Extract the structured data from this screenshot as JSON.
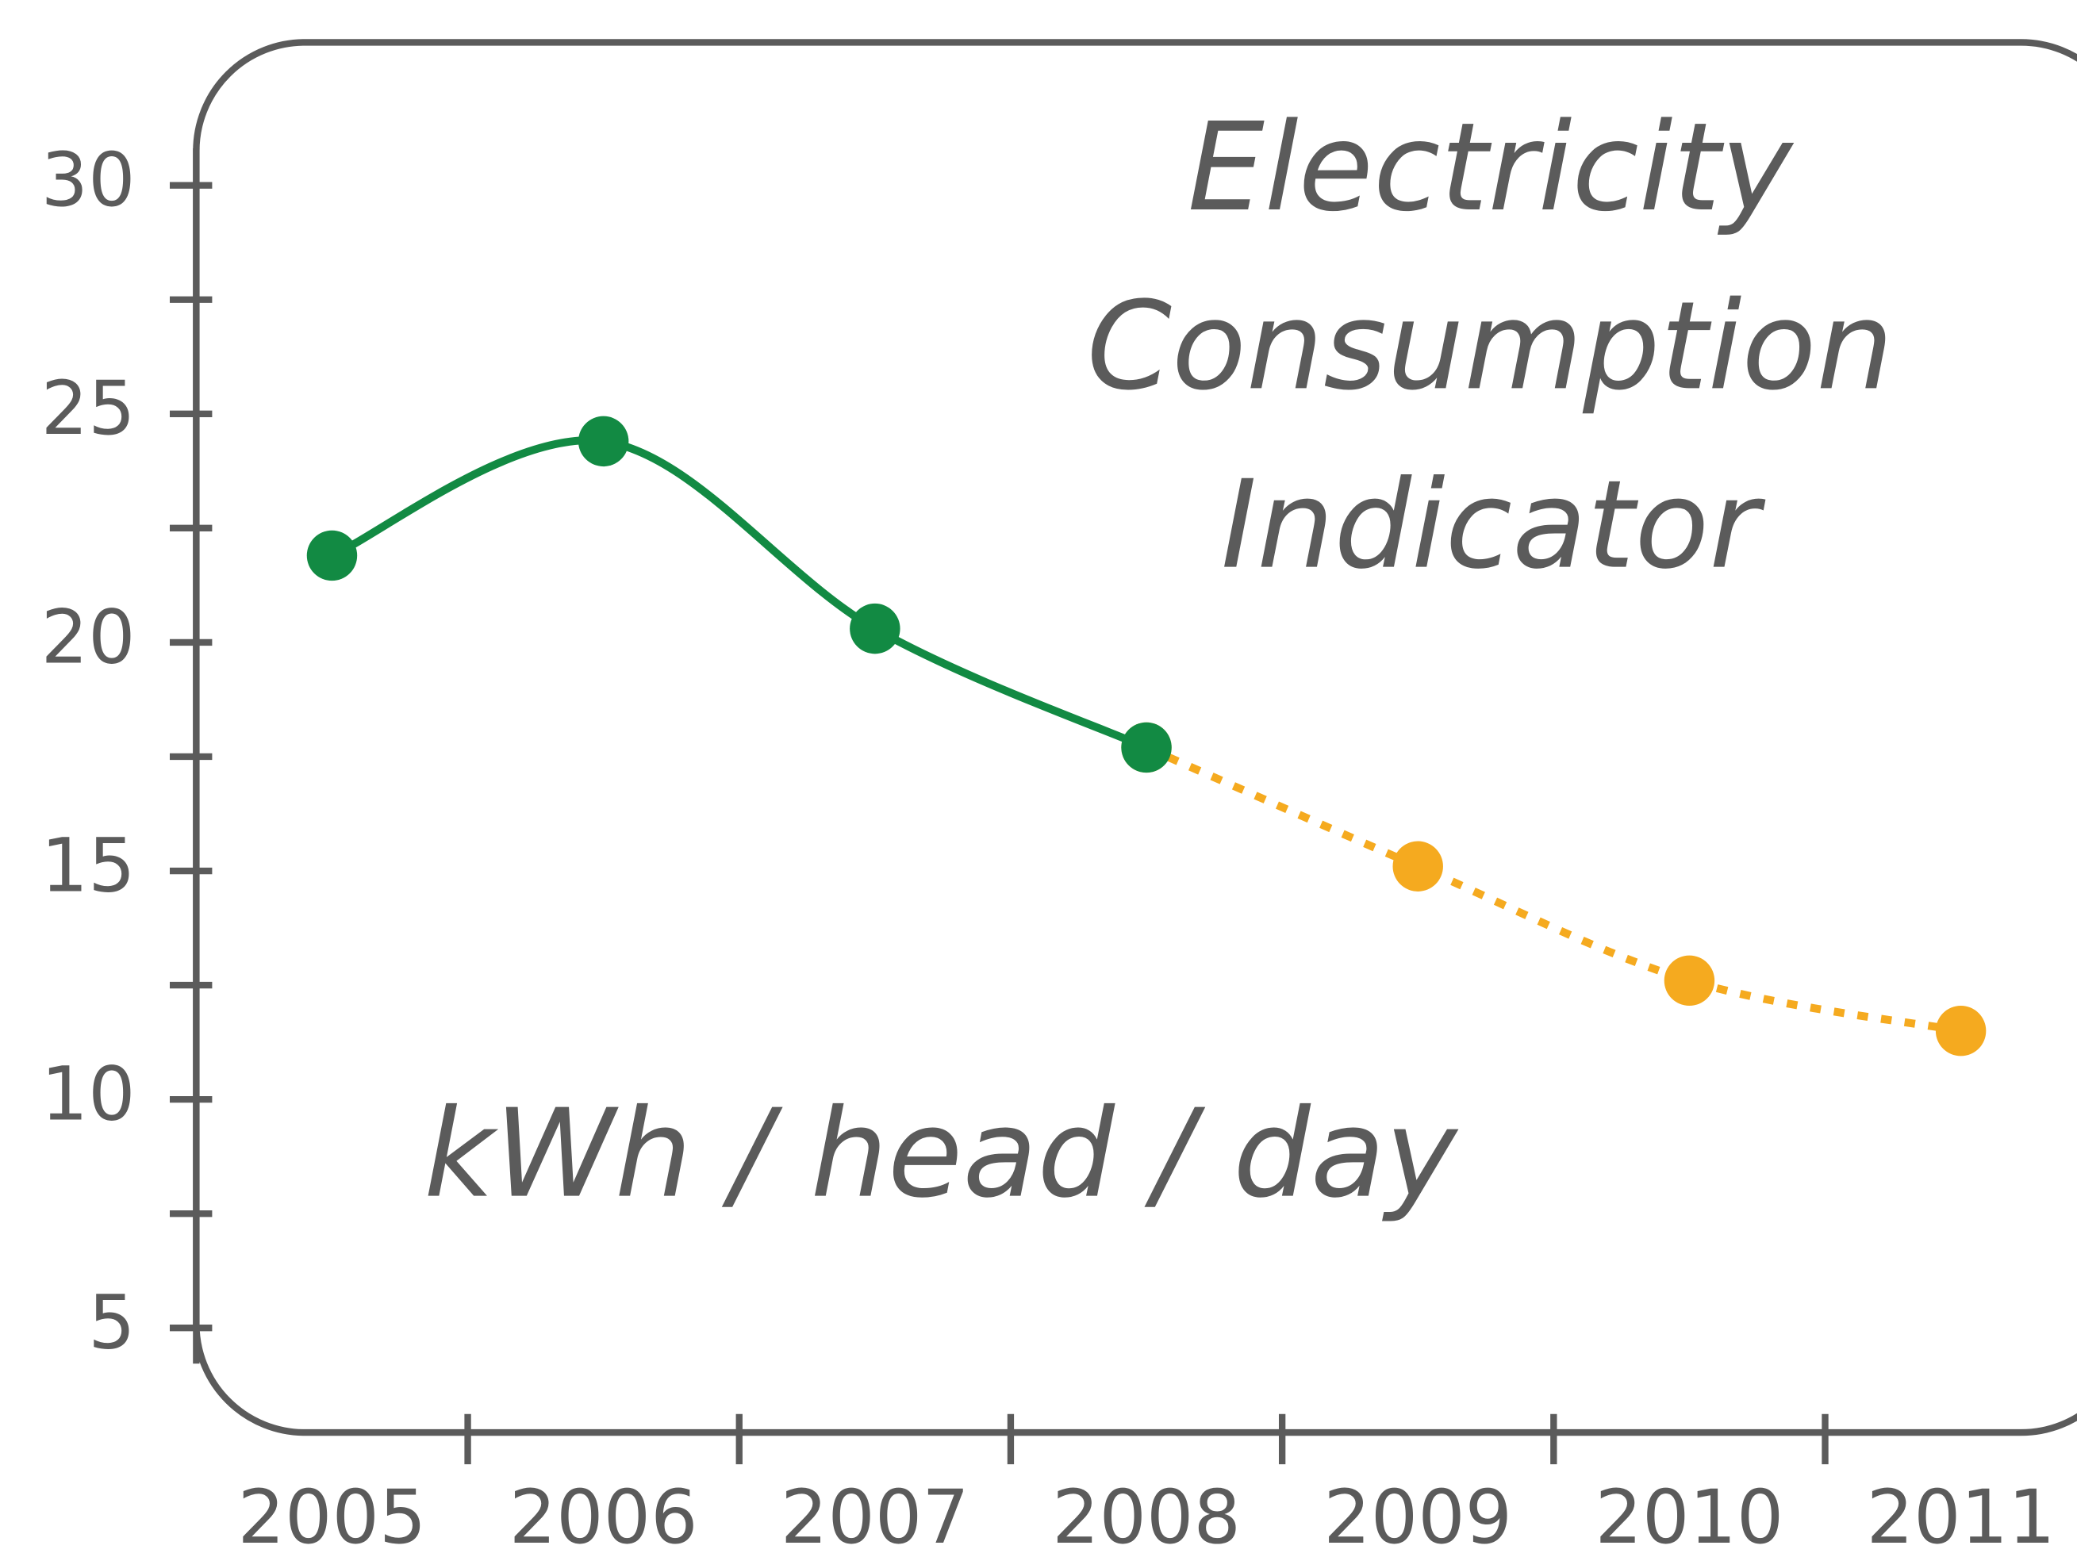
{
  "chart_data": {
    "type": "line",
    "title": [
      "Electricity",
      "Consumption",
      "Indicator"
    ],
    "ylabel": "kWh / head / day",
    "categories": [
      "2005",
      "2006",
      "2007",
      "2008",
      "2009",
      "2010",
      "2011"
    ],
    "series": [
      {
        "color": "#f5aa1f",
        "dashed": true,
        "values": [
          null,
          null,
          null,
          17.7,
          15.1,
          12.6,
          11.5
        ]
      },
      {
        "color": "#128a43",
        "dashed": false,
        "values": [
          21.9,
          24.4,
          20.3,
          17.7,
          null,
          null,
          null
        ]
      }
    ],
    "ylim": [
      5,
      30
    ],
    "yticks": [
      5,
      10,
      15,
      20,
      25,
      30
    ],
    "yticks_minor": [
      7.5,
      12.5,
      17.5,
      22.5,
      27.5
    ]
  }
}
